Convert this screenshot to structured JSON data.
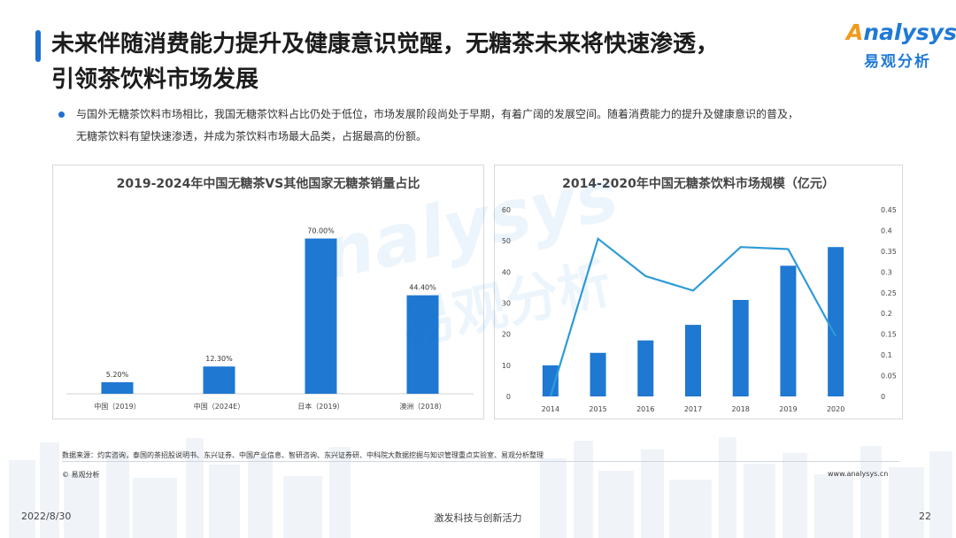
{
  "header": {
    "title_line1": "未来伴随消费能力提升及健康意识觉醒，无糖茶未来将快速渗透，",
    "title_line2": "引领茶饮料市场发展",
    "logo_en_first": "A",
    "logo_en_rest": "nalysys",
    "logo_cn": "易观分析"
  },
  "bullet": {
    "line1": "与国外无糖茶饮料市场相比，我国无糖茶饮料占比仍处于低位，市场发展阶段尚处于早期，有着广阔的发展空间。随着消费能力的提升及健康意识的普及，",
    "line2": "无糖茶饮料有望快速渗透，并成为茶饮料市场最大品类，占据最高的份额。"
  },
  "chart_data": [
    {
      "type": "bar",
      "title": "2019-2024年中国无糖茶VS其他国家无糖茶销量占比",
      "categories": [
        "中国（2019）",
        "中国（2024E）",
        "日本（2019）",
        "澳洲（2018）"
      ],
      "values": [
        5.2,
        12.3,
        70.0,
        44.4
      ],
      "data_labels": [
        "5.20%",
        "12.30%",
        "70.00%",
        "44.40%"
      ],
      "ylim": [
        0,
        75
      ],
      "color": "#1f78d1",
      "grid": false
    },
    {
      "type": "bar+line",
      "title": "2014-2020年中国无糖茶饮料市场规模（亿元）",
      "categories": [
        "2014",
        "2015",
        "2016",
        "2017",
        "2018",
        "2019",
        "2020"
      ],
      "series": [
        {
          "type": "bar",
          "axis": "left",
          "values": [
            10,
            14,
            18,
            23,
            31,
            42,
            48
          ]
        },
        {
          "type": "line",
          "axis": "right",
          "values": [
            0.0,
            0.38,
            0.29,
            0.255,
            0.36,
            0.355,
            0.145
          ]
        }
      ],
      "y_left": {
        "lim": [
          0,
          60
        ],
        "ticks": [
          "0",
          "10",
          "20",
          "30",
          "40",
          "50",
          "60"
        ]
      },
      "y_right": {
        "lim": [
          0,
          0.45
        ],
        "ticks": [
          "0",
          "0.05",
          "0.1",
          "0.15",
          "0.2",
          "0.25",
          "0.3",
          "0.35",
          "0.4",
          "0.45"
        ]
      },
      "bar_color": "#1f78d1",
      "line_color": "#2e9bd6",
      "grid": false
    }
  ],
  "footer": {
    "source": "数据来源：灼实咨询，泰国的茶招股说明书、东兴证券、中国产业信息、智研咨询、东兴证券研、中科院大数据挖掘与知识管理重点实验室、易观分析整理",
    "copyright": "© 易观分析",
    "website": "www.analysys.cn",
    "date": "2022/8/30",
    "slogan": "激发科技与创新活力",
    "page": "22"
  },
  "colors": {
    "accent": "#1e6fd0",
    "logo_orange": "#f29a1d"
  }
}
